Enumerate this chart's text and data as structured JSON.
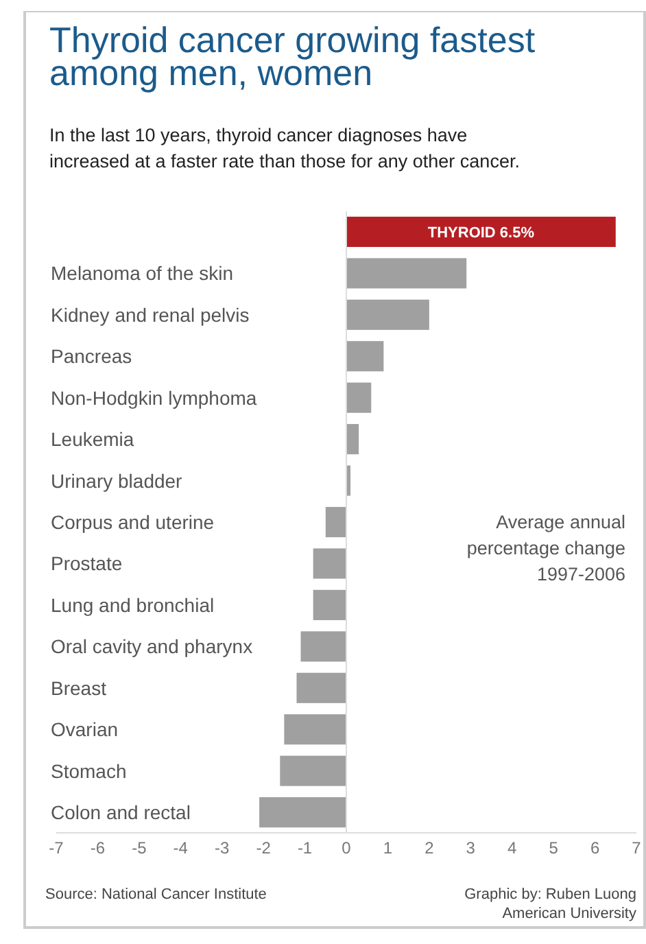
{
  "chart_data": {
    "type": "bar",
    "orientation": "horizontal",
    "title": "Thyroid cancer growing fastest\namong men, women",
    "subtitle": "In the last 10 years, thyroid cancer diagnoses have\nincreased at a faster rate than those for any other cancer.",
    "categories": [
      "THYROID 6.5%",
      "Melanoma of the skin",
      "Kidney and renal pelvis",
      "Pancreas",
      "Non-Hodgkin lymphoma",
      "Leukemia",
      "Urinary bladder",
      "Corpus and uterine",
      "Prostate",
      "Lung and bronchial",
      "Oral cavity and pharynx",
      "Breast",
      "Ovarian",
      "Stomach",
      "Colon and rectal"
    ],
    "values": [
      6.5,
      2.9,
      2.0,
      0.9,
      0.6,
      0.3,
      0.1,
      -0.5,
      -0.8,
      -0.8,
      -1.1,
      -1.2,
      -1.5,
      -1.6,
      -2.1
    ],
    "colors": [
      "#b51f24",
      "#a0a0a0",
      "#a0a0a0",
      "#a0a0a0",
      "#a0a0a0",
      "#a0a0a0",
      "#a0a0a0",
      "#a0a0a0",
      "#a0a0a0",
      "#a0a0a0",
      "#a0a0a0",
      "#a0a0a0",
      "#a0a0a0",
      "#a0a0a0",
      "#a0a0a0"
    ],
    "xlim": [
      -7,
      7
    ],
    "xticks": [
      -7,
      -6,
      -5,
      -4,
      -3,
      -2,
      -1,
      0,
      1,
      2,
      3,
      4,
      5,
      6,
      7
    ],
    "annotations": [
      "Average annual\npercentage change\n1997-2006",
      "Source: National Cancer Institute",
      "Graphic by: Ruben Luong\nAmerican University"
    ]
  }
}
